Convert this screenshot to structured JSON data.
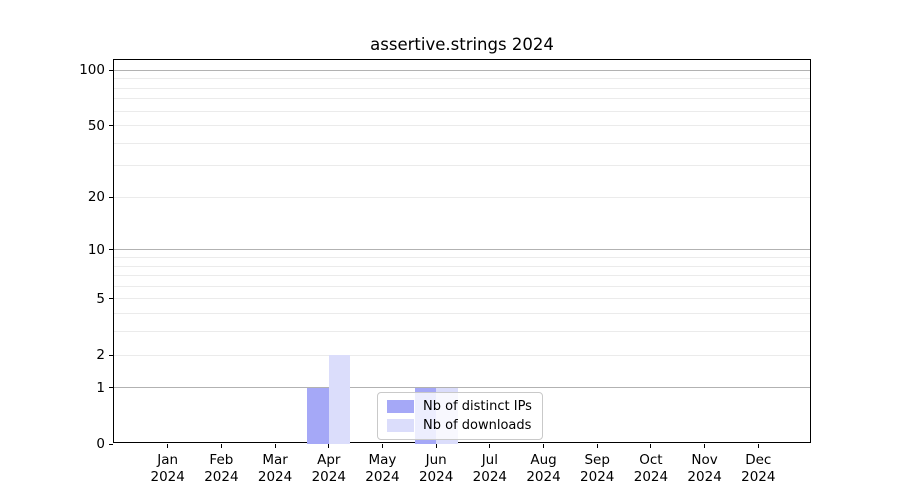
{
  "figure": {
    "title": "assertive.strings 2024",
    "background_color": "#ffffff",
    "spine_color": "#000000"
  },
  "chart_data": {
    "type": "bar",
    "title": "assertive.strings 2024",
    "categories": [
      "Jan",
      "Feb",
      "Mar",
      "Apr",
      "May",
      "Jun",
      "Jul",
      "Aug",
      "Sep",
      "Oct",
      "Nov",
      "Dec"
    ],
    "category_year": "2024",
    "series": [
      {
        "name": "Nb of distinct IPs",
        "color": "#a5a8f7",
        "values": [
          0,
          0,
          0,
          1,
          0,
          1,
          0,
          0,
          0,
          0,
          0,
          0
        ]
      },
      {
        "name": "Nb of downloads",
        "color": "#dbddfb",
        "values": [
          0,
          0,
          0,
          2,
          0,
          1,
          0,
          0,
          0,
          0,
          0,
          0
        ]
      }
    ],
    "xlabel": "",
    "ylabel": "",
    "yscale": "log1p",
    "ylim": [
      0,
      113.5
    ],
    "yticks": [
      0,
      1,
      2,
      5,
      10,
      20,
      50,
      100
    ],
    "grid": {
      "major_values": [
        1,
        10,
        100
      ],
      "minor_values": [
        2,
        3,
        4,
        5,
        6,
        7,
        8,
        9,
        20,
        30,
        40,
        50,
        60,
        70,
        80,
        90
      ],
      "major_color": "#b2b2b2",
      "minor_color": "#ebebeb"
    },
    "legend": {
      "position": "lower-center",
      "entries": [
        "Nb of distinct IPs",
        "Nb of downloads"
      ]
    }
  }
}
